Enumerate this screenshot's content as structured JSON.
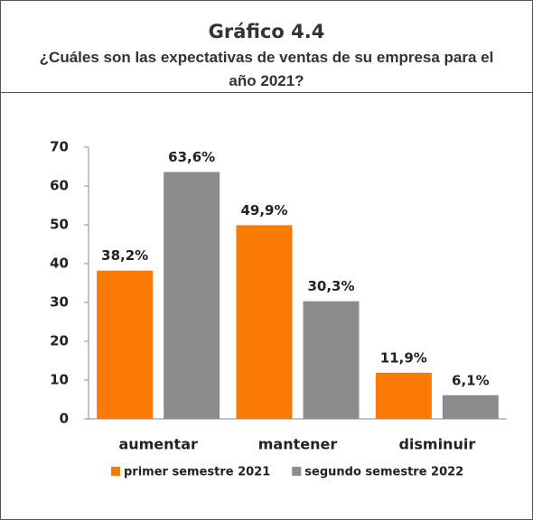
{
  "chart_data": {
    "type": "bar",
    "title": "Gráfico 4.4",
    "subtitle": "¿Cuáles son las expectativas de ventas de su empresa para el año 2021?",
    "categories": [
      "aumentar",
      "mantener",
      "disminuir"
    ],
    "series": [
      {
        "name": "primer semestre 2021",
        "color": "#f97a05",
        "values": [
          38.2,
          49.9,
          11.9
        ],
        "value_labels": [
          "38,2%",
          "49,9%",
          "11,9%"
        ]
      },
      {
        "name": "segundo semestre 2022",
        "color": "#8c8c8c",
        "values": [
          63.6,
          30.3,
          6.1
        ],
        "value_labels": [
          "63,6%",
          "30,3%",
          "6,1%"
        ]
      }
    ],
    "ylim": [
      0,
      70
    ],
    "yticks": [
      0,
      10,
      20,
      30,
      40,
      50,
      60,
      70
    ],
    "grid": false,
    "legend": "bottom"
  }
}
